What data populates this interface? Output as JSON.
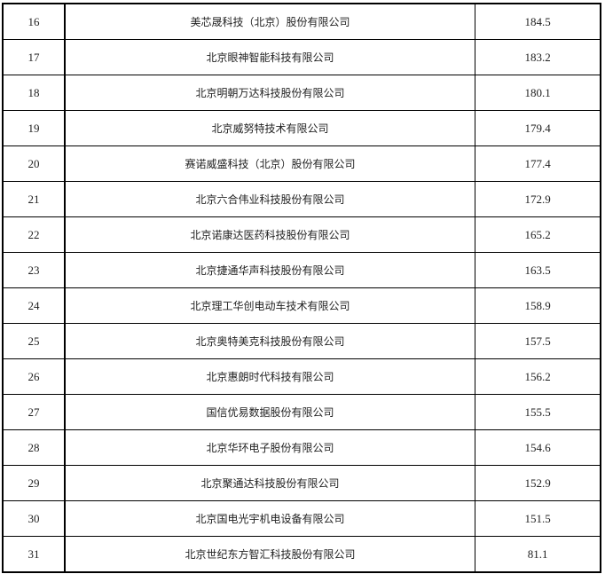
{
  "table": {
    "rows": [
      {
        "no": "16",
        "name": "美芯晟科技（北京）股份有限公司",
        "value": "184.5"
      },
      {
        "no": "17",
        "name": "北京眼神智能科技有限公司",
        "value": "183.2"
      },
      {
        "no": "18",
        "name": "北京明朝万达科技股份有限公司",
        "value": "180.1"
      },
      {
        "no": "19",
        "name": "北京威努特技术有限公司",
        "value": "179.4"
      },
      {
        "no": "20",
        "name": "赛诺威盛科技（北京）股份有限公司",
        "value": "177.4"
      },
      {
        "no": "21",
        "name": "北京六合伟业科技股份有限公司",
        "value": "172.9"
      },
      {
        "no": "22",
        "name": "北京诺康达医药科技股份有限公司",
        "value": "165.2"
      },
      {
        "no": "23",
        "name": "北京捷通华声科技股份有限公司",
        "value": "163.5"
      },
      {
        "no": "24",
        "name": "北京理工华创电动车技术有限公司",
        "value": "158.9"
      },
      {
        "no": "25",
        "name": "北京奥特美克科技股份有限公司",
        "value": "157.5"
      },
      {
        "no": "26",
        "name": "北京惠朗时代科技有限公司",
        "value": "156.2"
      },
      {
        "no": "27",
        "name": "国信优易数据股份有限公司",
        "value": "155.5"
      },
      {
        "no": "28",
        "name": "北京华环电子股份有限公司",
        "value": "154.6"
      },
      {
        "no": "29",
        "name": "北京聚通达科技股份有限公司",
        "value": "152.9"
      },
      {
        "no": "30",
        "name": "北京国电光宇机电设备有限公司",
        "value": "151.5"
      },
      {
        "no": "31",
        "name": "北京世纪东方智汇科技股份有限公司",
        "value": "81.1"
      }
    ]
  }
}
